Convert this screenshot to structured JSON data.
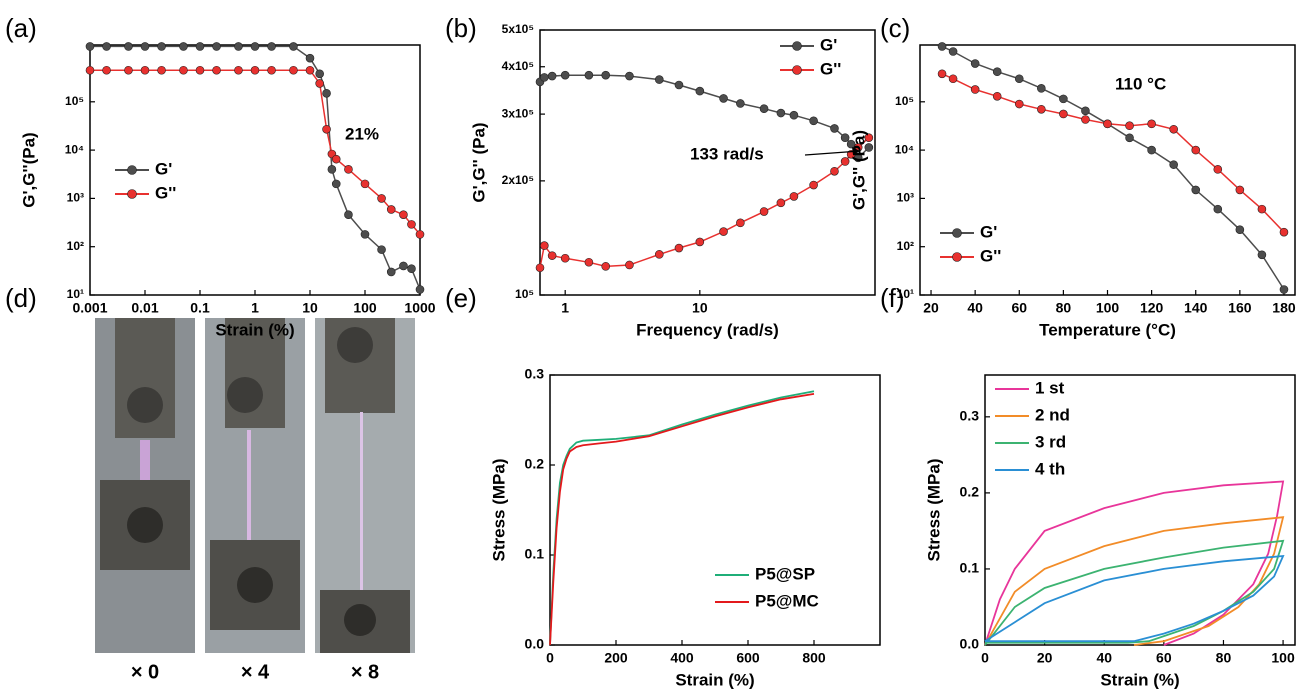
{
  "chart_data": [
    {
      "type": "line",
      "label": "(a)",
      "x_label": "Strain (%)",
      "y_label": "G',G''(Pa)",
      "annotation": "21%",
      "xscale": "log",
      "yscale": "log",
      "markers": true,
      "legend": "center left",
      "xlim": [
        0.001,
        1000
      ],
      "ylim": [
        10,
        1500000
      ],
      "xticks": [
        0.001,
        0.01,
        0.1,
        1,
        10,
        100,
        1000
      ],
      "yticks": [
        {
          "value": 10,
          "label": "10¹"
        },
        {
          "value": 100,
          "label": "10²"
        },
        {
          "value": 1000,
          "label": "10³"
        },
        {
          "value": 10000,
          "label": "10⁴"
        },
        {
          "value": 100000,
          "label": "10⁵"
        }
      ],
      "x": [
        0.001,
        0.002,
        0.005,
        0.01,
        0.02,
        0.05,
        0.1,
        0.2,
        0.5,
        1,
        2,
        5,
        10,
        15,
        20,
        25,
        30,
        50,
        100,
        200,
        300,
        500,
        700,
        1000
      ],
      "series": [
        {
          "name": "G'",
          "color": "#4d4d4d",
          "values": [
            1400000,
            1400000,
            1400000,
            1400000,
            1400000,
            1400000,
            1400000,
            1400000,
            1400000,
            1400000,
            1400000,
            1400000,
            800000,
            380000,
            150000,
            4000,
            2000,
            460,
            180,
            87,
            30,
            40,
            35,
            13
          ]
        },
        {
          "name": "G''",
          "color": "#e8312f",
          "values": [
            450000,
            450000,
            450000,
            450000,
            450000,
            450000,
            450000,
            450000,
            450000,
            450000,
            450000,
            450000,
            450000,
            240000,
            27000,
            8300,
            6500,
            4000,
            2000,
            1000,
            590,
            460,
            290,
            180
          ]
        }
      ]
    },
    {
      "type": "line",
      "label": "(b)",
      "x_label": "Frequency (rad/s)",
      "y_label": "G',G'' (Pa)",
      "annotation": "133 rad/s",
      "xscale": "log",
      "yscale": "log",
      "markers": true,
      "legend": "upper right",
      "xlim": [
        0.65,
        200
      ],
      "ylim": [
        100000,
        500000
      ],
      "xticks": [
        1,
        10
      ],
      "yticks": [
        {
          "value": 100000,
          "label": "10⁵"
        },
        {
          "value": 200000,
          "label": "2x10⁵"
        },
        {
          "value": 300000,
          "label": "3x10⁵"
        },
        {
          "value": 400000,
          "label": "4x10⁵"
        },
        {
          "value": 500000,
          "label": "5x10⁵"
        }
      ],
      "x": [
        0.65,
        0.7,
        0.8,
        1,
        1.5,
        2,
        3,
        5,
        7,
        10,
        15,
        20,
        30,
        40,
        50,
        70,
        100,
        120,
        133,
        150,
        180
      ],
      "series": [
        {
          "name": "G'",
          "color": "#4d4d4d",
          "values": [
            365000,
            375000,
            378000,
            380000,
            380000,
            380000,
            378000,
            370000,
            358000,
            345000,
            330000,
            320000,
            310000,
            302000,
            298000,
            288000,
            275000,
            260000,
            250000,
            230000,
            245000
          ]
        },
        {
          "name": "G''",
          "color": "#e8312f",
          "values": [
            118000,
            135000,
            127000,
            125000,
            122000,
            119000,
            120000,
            128000,
            133000,
            138000,
            147000,
            155000,
            166000,
            175000,
            182000,
            195000,
            212000,
            225000,
            235000,
            245000,
            260000
          ]
        }
      ]
    },
    {
      "type": "line",
      "label": "(c)",
      "x_label": "Temperature (°C)",
      "y_label": "G',G'' (Pa)",
      "annotation": "110 °C",
      "xscale": "linear",
      "yscale": "log",
      "markers": true,
      "legend": "lower left",
      "xlim": [
        15,
        185
      ],
      "ylim": [
        10,
        1500000
      ],
      "xticks": [
        20,
        40,
        60,
        80,
        100,
        120,
        140,
        160,
        180
      ],
      "yticks": [
        {
          "value": 10,
          "label": "10¹"
        },
        {
          "value": 100,
          "label": "10²"
        },
        {
          "value": 1000,
          "label": "10³"
        },
        {
          "value": 10000,
          "label": "10⁴"
        },
        {
          "value": 100000,
          "label": "10⁵"
        }
      ],
      "x": [
        25,
        30,
        40,
        50,
        60,
        70,
        80,
        90,
        100,
        110,
        120,
        130,
        140,
        150,
        160,
        170,
        180
      ],
      "series": [
        {
          "name": "G'",
          "color": "#4d4d4d",
          "values": [
            1400000,
            1100000,
            620000,
            420000,
            300000,
            190000,
            115000,
            65000,
            35000,
            18000,
            10000,
            5000,
            1500,
            600,
            225,
            68,
            13
          ]
        },
        {
          "name": "G''",
          "color": "#e8312f",
          "values": [
            380000,
            300000,
            180000,
            130000,
            90000,
            70000,
            56000,
            43000,
            35000,
            32000,
            35000,
            27000,
            10000,
            4000,
            1500,
            600,
            200
          ]
        }
      ]
    },
    {
      "type": "line",
      "label": "(e)",
      "x_label": "Strain (%)",
      "y_label": "Stress (MPa)",
      "xscale": "linear",
      "yscale": "linear",
      "markers": false,
      "legend": "lower right",
      "xlim": [
        0,
        1000
      ],
      "ylim": [
        0,
        0.3
      ],
      "xticks": [
        0,
        200,
        400,
        600,
        800
      ],
      "yticks": [
        {
          "value": 0,
          "label": "0.0"
        },
        0.1,
        0.2,
        0.3
      ],
      "x": [
        0,
        10,
        20,
        30,
        40,
        50,
        60,
        80,
        100,
        150,
        200,
        300,
        400,
        500,
        600,
        700,
        800
      ],
      "series": [
        {
          "name": "P5@SP",
          "color": "#1fae78",
          "values": [
            0,
            0.08,
            0.14,
            0.18,
            0.2,
            0.21,
            0.218,
            0.225,
            0.227,
            0.228,
            0.229,
            0.233,
            0.245,
            0.256,
            0.266,
            0.275,
            0.282
          ]
        },
        {
          "name": "P5@MC",
          "color": "#e3191c",
          "values": [
            0,
            0.07,
            0.13,
            0.17,
            0.195,
            0.207,
            0.215,
            0.22,
            0.222,
            0.224,
            0.226,
            0.232,
            0.243,
            0.254,
            0.264,
            0.273,
            0.279
          ]
        }
      ]
    },
    {
      "type": "line",
      "label": "(f)",
      "x_label": "Strain (%)",
      "y_label": "Stress (MPa)",
      "xscale": "linear",
      "yscale": "linear",
      "markers": false,
      "legend": "upper left",
      "xlim": [
        0,
        104
      ],
      "ylim": [
        0,
        0.355
      ],
      "xticks": [
        0,
        20,
        40,
        60,
        80,
        100
      ],
      "yticks": [
        {
          "value": 0,
          "label": "0.0"
        },
        0.1,
        0.2,
        0.3
      ],
      "series": [
        {
          "name": "1 st",
          "color": "#e8359a",
          "x": [
            0,
            5,
            10,
            20,
            40,
            60,
            80,
            100,
            98,
            95,
            90,
            80,
            70,
            60
          ],
          "values": [
            0,
            0.06,
            0.1,
            0.15,
            0.18,
            0.2,
            0.21,
            0.215,
            0.17,
            0.12,
            0.08,
            0.04,
            0.015,
            0
          ]
        },
        {
          "name": "2 nd",
          "color": "#f28c28",
          "x": [
            0,
            10,
            20,
            40,
            60,
            80,
            100,
            97,
            92,
            85,
            75,
            60,
            50
          ],
          "values": [
            0,
            0.07,
            0.1,
            0.13,
            0.15,
            0.16,
            0.168,
            0.12,
            0.08,
            0.05,
            0.025,
            0.005,
            0
          ]
        },
        {
          "name": "3 rd",
          "color": "#3cb371",
          "x": [
            0,
            10,
            20,
            40,
            60,
            80,
            100,
            97,
            90,
            80,
            70,
            55,
            48,
            0
          ],
          "values": [
            0,
            0.05,
            0.075,
            0.1,
            0.115,
            0.128,
            0.137,
            0.1,
            0.07,
            0.045,
            0.025,
            0.005,
            0.003,
            0.003
          ]
        },
        {
          "name": "4 th",
          "color": "#2a8fd4",
          "x": [
            0,
            10,
            20,
            40,
            60,
            80,
            100,
            97,
            90,
            80,
            70,
            60,
            50,
            0
          ],
          "values": [
            0.005,
            0.03,
            0.055,
            0.085,
            0.1,
            0.11,
            0.117,
            0.09,
            0.065,
            0.045,
            0.028,
            0.015,
            0.005,
            0.005
          ]
        }
      ]
    }
  ],
  "photo_panel": {
    "label": "(d)",
    "captions": [
      "× 0",
      "× 4",
      "× 8"
    ]
  }
}
